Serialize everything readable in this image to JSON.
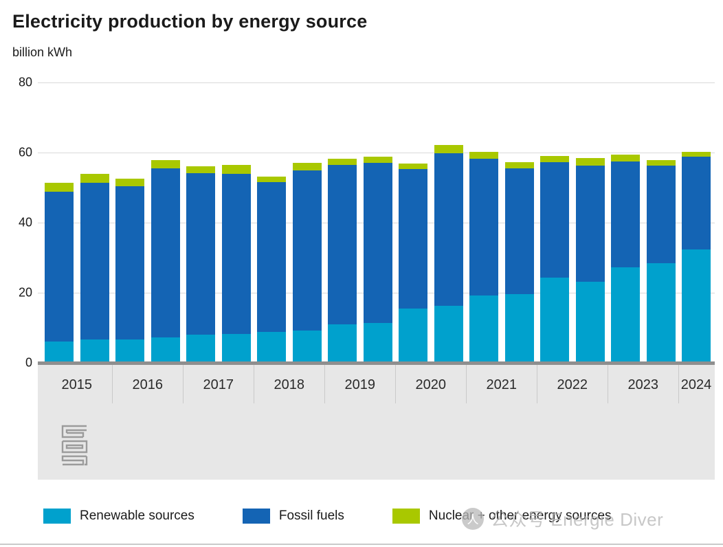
{
  "title": "Electricity production by energy source",
  "unit_label": "billion kWh",
  "watermark": {
    "icon": "wechat-account-icon",
    "text": "公众号 Energie Diver"
  },
  "logo": "cbs-logo",
  "colors": {
    "renewable": "#00a1cd",
    "fossil": "#1464b4",
    "nuclear_other": "#a9c800",
    "band": "#e7e7e7",
    "gridline": "#d9d9d9",
    "axis": "#8f8f8f"
  },
  "chart_data": {
    "type": "bar",
    "stacked": true,
    "title": "Electricity production by energy source",
    "ylabel": "billion kWh",
    "ylim": [
      0,
      80
    ],
    "yticks": [
      0,
      20,
      40,
      60,
      80
    ],
    "grid": true,
    "legend_position": "bottom",
    "x_groups": [
      "2015",
      "2016",
      "2017",
      "2018",
      "2019",
      "2020",
      "2021",
      "2022",
      "2023",
      "2024"
    ],
    "bars_per_group": [
      2,
      2,
      2,
      2,
      2,
      2,
      2,
      2,
      2,
      1
    ],
    "note": "two half-year bars per year, one bar for 2024",
    "series": [
      {
        "name": "Renewable sources",
        "color": "#00a1cd",
        "values": [
          6.1,
          6.6,
          6.6,
          7.2,
          8.1,
          8.3,
          8.8,
          9.3,
          11.0,
          11.3,
          15.5,
          16.2,
          19.2,
          19.6,
          24.4,
          23.1,
          27.3,
          28.4,
          32.3
        ]
      },
      {
        "name": "Fossil fuels",
        "color": "#1464b4",
        "values": [
          42.8,
          44.8,
          43.8,
          48.2,
          46.0,
          45.7,
          42.8,
          45.6,
          45.5,
          45.8,
          39.7,
          43.6,
          39.1,
          35.8,
          32.9,
          33.1,
          30.2,
          27.8,
          26.5
        ]
      },
      {
        "name": "Nuclear + other energy sources",
        "color": "#a9c800",
        "values": [
          2.5,
          2.6,
          2.1,
          2.5,
          2.0,
          2.5,
          1.6,
          2.1,
          1.8,
          1.7,
          1.6,
          2.4,
          2.0,
          1.9,
          1.7,
          2.2,
          2.0,
          1.6,
          1.4
        ]
      }
    ]
  }
}
